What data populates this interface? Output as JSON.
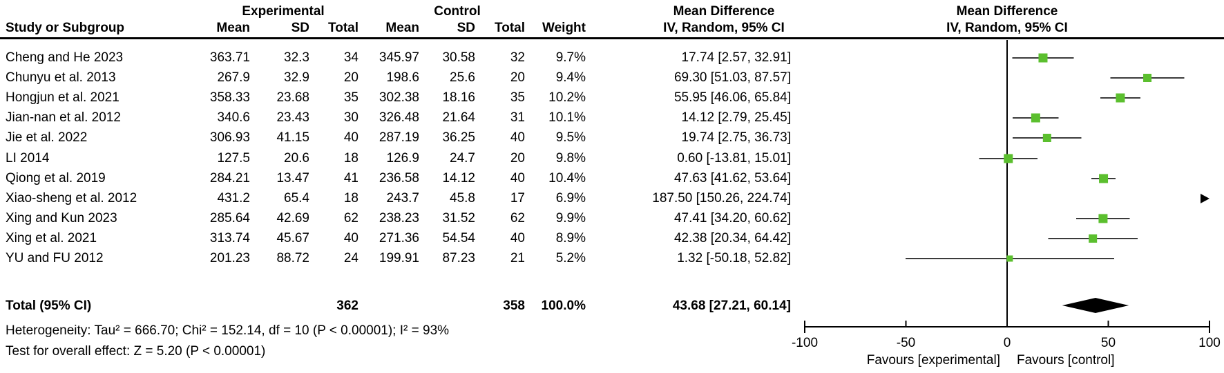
{
  "table": {
    "group_headers": {
      "experimental": "Experimental",
      "control": "Control",
      "md_title": "Mean Difference",
      "md_sub": "IV, Random, 95% CI"
    },
    "col_headers": {
      "study": "Study or Subgroup",
      "mean": "Mean",
      "sd": "SD",
      "total": "Total",
      "weight": "Weight"
    },
    "rows": [
      {
        "study": "Cheng and He 2023",
        "e_mean": "363.71",
        "e_sd": "32.3",
        "e_total": "34",
        "c_mean": "345.97",
        "c_sd": "30.58",
        "c_total": "32",
        "weight": "9.7%",
        "ci": "17.74 [2.57, 32.91]"
      },
      {
        "study": "Chunyu et al. 2013",
        "e_mean": "267.9",
        "e_sd": "32.9",
        "e_total": "20",
        "c_mean": "198.6",
        "c_sd": "25.6",
        "c_total": "20",
        "weight": "9.4%",
        "ci": "69.30 [51.03, 87.57]"
      },
      {
        "study": "Hongjun et al. 2021",
        "e_mean": "358.33",
        "e_sd": "23.68",
        "e_total": "35",
        "c_mean": "302.38",
        "c_sd": "18.16",
        "c_total": "35",
        "weight": "10.2%",
        "ci": "55.95 [46.06, 65.84]"
      },
      {
        "study": "Jian-nan et al. 2012",
        "e_mean": "340.6",
        "e_sd": "23.43",
        "e_total": "30",
        "c_mean": "326.48",
        "c_sd": "21.64",
        "c_total": "31",
        "weight": "10.1%",
        "ci": "14.12 [2.79, 25.45]"
      },
      {
        "study": "Jie et al. 2022",
        "e_mean": "306.93",
        "e_sd": "41.15",
        "e_total": "40",
        "c_mean": "287.19",
        "c_sd": "36.25",
        "c_total": "40",
        "weight": "9.5%",
        "ci": "19.74 [2.75, 36.73]"
      },
      {
        "study": "LI 2014",
        "e_mean": "127.5",
        "e_sd": "20.6",
        "e_total": "18",
        "c_mean": "126.9",
        "c_sd": "24.7",
        "c_total": "20",
        "weight": "9.8%",
        "ci": "0.60 [-13.81, 15.01]"
      },
      {
        "study": "Qiong et al. 2019",
        "e_mean": "284.21",
        "e_sd": "13.47",
        "e_total": "41",
        "c_mean": "236.58",
        "c_sd": "14.12",
        "c_total": "40",
        "weight": "10.4%",
        "ci": "47.63 [41.62, 53.64]"
      },
      {
        "study": "Xiao-sheng et al. 2012",
        "e_mean": "431.2",
        "e_sd": "65.4",
        "e_total": "18",
        "c_mean": "243.7",
        "c_sd": "45.8",
        "c_total": "17",
        "weight": "6.9%",
        "ci": "187.50 [150.26, 224.74]"
      },
      {
        "study": "Xing and Kun 2023",
        "e_mean": "285.64",
        "e_sd": "42.69",
        "e_total": "62",
        "c_mean": "238.23",
        "c_sd": "31.52",
        "c_total": "62",
        "weight": "9.9%",
        "ci": "47.41 [34.20, 60.62]"
      },
      {
        "study": "Xing et al. 2021",
        "e_mean": "313.74",
        "e_sd": "45.67",
        "e_total": "40",
        "c_mean": "271.36",
        "c_sd": "54.54",
        "c_total": "40",
        "weight": "8.9%",
        "ci": "42.38 [20.34, 64.42]"
      },
      {
        "study": "YU and FU 2012",
        "e_mean": "201.23",
        "e_sd": "88.72",
        "e_total": "24",
        "c_mean": "199.91",
        "c_sd": "87.23",
        "c_total": "21",
        "weight": "5.2%",
        "ci": "1.32 [-50.18, 52.82]"
      }
    ],
    "total_row": {
      "label": "Total (95% CI)",
      "e_total": "362",
      "c_total": "358",
      "weight": "100.0%",
      "ci": "43.68 [27.21, 60.14]"
    },
    "heterogeneity": "Heterogeneity: Tau² = 666.70; Chi² = 152.14, df = 10 (P < 0.00001); I² = 93%",
    "overall_effect": "Test for overall effect: Z = 5.20 (P < 0.00001)"
  },
  "chart_data": {
    "type": "forest",
    "effect_measure": "Mean Difference",
    "method": "IV, Random, 95% CI",
    "x_axis": {
      "min": -100,
      "max": 100,
      "ticks": [
        -100,
        -50,
        0,
        50,
        100
      ],
      "label_left": "Favours [experimental]",
      "label_right": "Favours [control]"
    },
    "studies": [
      {
        "name": "Cheng and He 2023",
        "md": 17.74,
        "ci_low": 2.57,
        "ci_high": 32.91,
        "weight_pct": 9.7
      },
      {
        "name": "Chunyu et al. 2013",
        "md": 69.3,
        "ci_low": 51.03,
        "ci_high": 87.57,
        "weight_pct": 9.4
      },
      {
        "name": "Hongjun et al. 2021",
        "md": 55.95,
        "ci_low": 46.06,
        "ci_high": 65.84,
        "weight_pct": 10.2
      },
      {
        "name": "Jian-nan et al. 2012",
        "md": 14.12,
        "ci_low": 2.79,
        "ci_high": 25.45,
        "weight_pct": 10.1
      },
      {
        "name": "Jie et al. 2022",
        "md": 19.74,
        "ci_low": 2.75,
        "ci_high": 36.73,
        "weight_pct": 9.5
      },
      {
        "name": "LI 2014",
        "md": 0.6,
        "ci_low": -13.81,
        "ci_high": 15.01,
        "weight_pct": 9.8
      },
      {
        "name": "Qiong et al. 2019",
        "md": 47.63,
        "ci_low": 41.62,
        "ci_high": 53.64,
        "weight_pct": 10.4
      },
      {
        "name": "Xiao-sheng et al. 2012",
        "md": 187.5,
        "ci_low": 150.26,
        "ci_high": 224.74,
        "weight_pct": 6.9,
        "off_scale": "right"
      },
      {
        "name": "Xing and Kun 2023",
        "md": 47.41,
        "ci_low": 34.2,
        "ci_high": 60.62,
        "weight_pct": 9.9
      },
      {
        "name": "Xing et al. 2021",
        "md": 42.38,
        "ci_low": 20.34,
        "ci_high": 64.42,
        "weight_pct": 8.9
      },
      {
        "name": "YU and FU 2012",
        "md": 1.32,
        "ci_low": -50.18,
        "ci_high": 52.82,
        "weight_pct": 5.2
      }
    ],
    "total": {
      "md": 43.68,
      "ci_low": 27.21,
      "ci_high": 60.14
    },
    "marker_color": "#5bbf2e",
    "line_color": "#3b3b3b",
    "diamond_color": "#000000",
    "axis_color": "#000000"
  }
}
